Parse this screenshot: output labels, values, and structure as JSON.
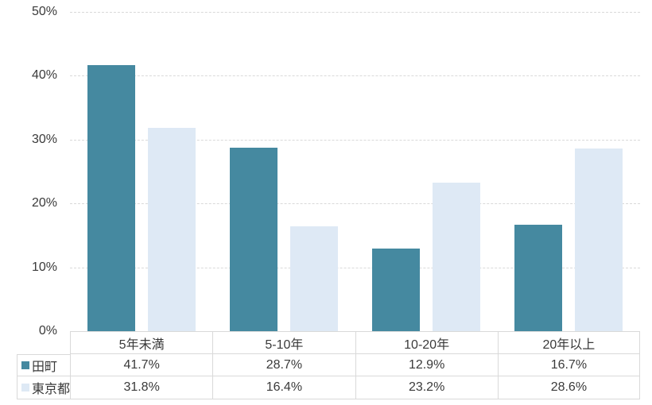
{
  "chart_data": {
    "type": "bar",
    "title": "",
    "categories": [
      "5年未満",
      "5-10年",
      "10-20年",
      "20年以上"
    ],
    "series": [
      {
        "name": "田町",
        "color": "#4589A0",
        "values": [
          41.7,
          28.7,
          12.9,
          16.7
        ]
      },
      {
        "name": "東京都",
        "color": "#DEE9F5",
        "values": [
          31.8,
          16.4,
          23.2,
          28.6
        ]
      }
    ],
    "xlabel": "",
    "ylabel": "",
    "ylim": [
      0,
      50
    ],
    "ytick_step": 10,
    "ytick_labels": [
      "0%",
      "10%",
      "20%",
      "30%",
      "40%",
      "50%"
    ],
    "value_suffix": "%",
    "grid": "horizontal-dashed",
    "legend_position": "table-rows-left"
  },
  "colors": {
    "series_tamachi": "#4589A0",
    "series_tokyo": "#DEE9F5",
    "gridline": "#D9D9D9",
    "table_border": "#D9D9D9",
    "text": "#3A3A3A",
    "background": "#FFFFFF"
  }
}
